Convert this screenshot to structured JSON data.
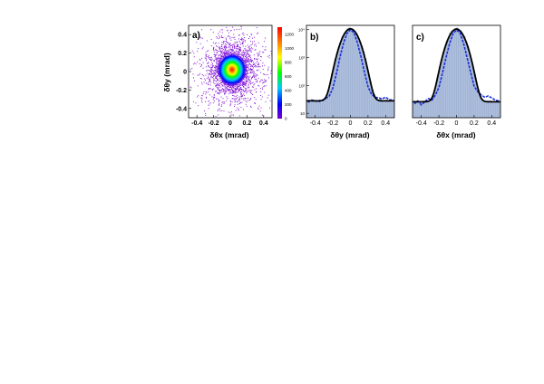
{
  "chart_data": [
    {
      "type": "heatmap",
      "panel_label": "a)",
      "xlabel": "δθx (mrad)",
      "ylabel": "δθy (mrad)",
      "xlim": [
        -0.5,
        0.5
      ],
      "ylim": [
        -0.5,
        0.5
      ],
      "x_ticks": [
        "-0.4",
        "-0.2",
        "0",
        "0.2",
        "0.4"
      ],
      "y_ticks": [
        "-0.4",
        "-0.2",
        "0",
        "0.2",
        "0.4"
      ],
      "colorbar": {
        "range": [
          0,
          1300
        ],
        "ticks": [
          "1200",
          "1000",
          "800",
          "600",
          "400",
          "200",
          "0"
        ],
        "colors": [
          "#7b00d4",
          "#0000ff",
          "#00c8ff",
          "#00ff00",
          "#ffff00",
          "#ff8000",
          "#ff0000"
        ]
      },
      "peak": {
        "x": 0.02,
        "y": 0.02,
        "sigma": 0.07,
        "max": 1300
      },
      "grid": false
    },
    {
      "type": "line",
      "panel_label": "b)",
      "xlabel": "δθy (mrad)",
      "xlim": [
        -0.5,
        0.5
      ],
      "ylog": true,
      "ylim": [
        7,
        14000
      ],
      "x_ticks": [
        "-0.4",
        "-0.2",
        "0",
        "0.2",
        "0.4"
      ],
      "y_ticks": [
        "10",
        "10²",
        "10³",
        "10⁴"
      ],
      "bins_per_side": 25,
      "data": {
        "x": [
          -0.48,
          -0.44,
          -0.4,
          -0.36,
          -0.32,
          -0.28,
          -0.24,
          -0.2,
          -0.16,
          -0.12,
          -0.08,
          -0.04,
          0,
          0.04,
          0.08,
          0.12,
          0.16,
          0.2,
          0.24,
          0.28,
          0.32,
          0.36,
          0.4,
          0.44,
          0.48
        ],
        "y": [
          25,
          30,
          28,
          26,
          30,
          34,
          42,
          80,
          260,
          1000,
          3100,
          7200,
          9800,
          7600,
          3300,
          1050,
          290,
          90,
          48,
          38,
          36,
          33,
          38,
          31,
          30
        ]
      },
      "fit": {
        "amplitude": 10500,
        "mean": 0.0,
        "sigma": 0.075,
        "baseline": 28
      },
      "colors": {
        "hist_fill": "#aebfdd",
        "hist_edge": "#8ea3c8",
        "data": "#1a2ed6",
        "fit": "#000000"
      }
    },
    {
      "type": "line",
      "panel_label": "c)",
      "xlabel": "δθx (mrad)",
      "xlim": [
        -0.5,
        0.5
      ],
      "ylog": true,
      "ylim": [
        7,
        14000
      ],
      "x_ticks": [
        "-0.4",
        "-0.2",
        "0",
        "0.2",
        "0.4"
      ],
      "bins_per_side": 25,
      "data": {
        "x": [
          -0.48,
          -0.44,
          -0.4,
          -0.36,
          -0.32,
          -0.28,
          -0.24,
          -0.2,
          -0.16,
          -0.12,
          -0.08,
          -0.04,
          0,
          0.04,
          0.08,
          0.12,
          0.16,
          0.2,
          0.24,
          0.28,
          0.32,
          0.36,
          0.4,
          0.44,
          0.48
        ],
        "y": [
          22,
          28,
          20,
          26,
          34,
          30,
          45,
          85,
          270,
          980,
          3000,
          7000,
          9600,
          7500,
          3200,
          1000,
          300,
          95,
          60,
          46,
          38,
          42,
          36,
          30,
          28
        ]
      },
      "fit": {
        "amplitude": 10300,
        "mean": 0.0,
        "sigma": 0.075,
        "baseline": 26
      },
      "colors": {
        "hist_fill": "#aebfdd",
        "hist_edge": "#8ea3c8",
        "data": "#1a2ed6",
        "fit": "#000000"
      }
    }
  ]
}
